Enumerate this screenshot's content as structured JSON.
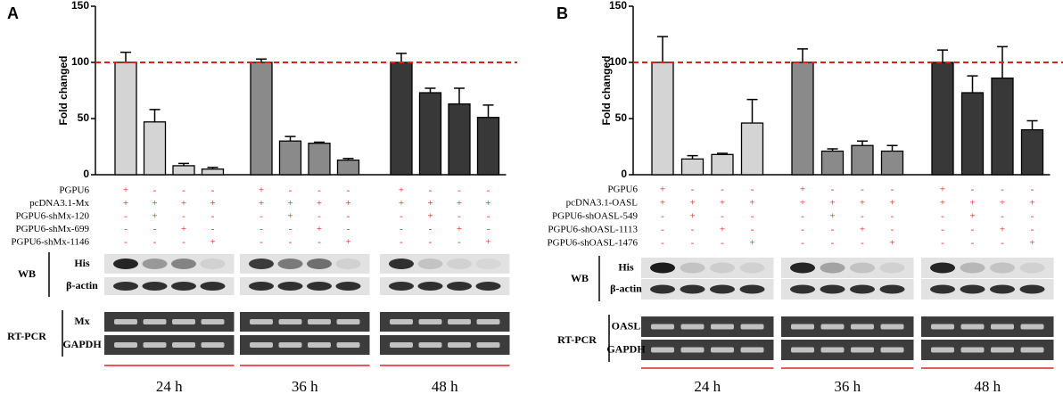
{
  "chart_data": [
    {
      "type": "bar",
      "panel": "A",
      "ylabel": "Fold changed",
      "ylim": [
        0,
        150
      ],
      "yticks": [
        0,
        50,
        100,
        150
      ],
      "reference_line": 100,
      "reference_color": "#e02020",
      "groups": [
        "24 h",
        "36 h",
        "48 h"
      ],
      "values": [
        100,
        47,
        8,
        5,
        100,
        30,
        28,
        13,
        100,
        73,
        63,
        51
      ],
      "errors": [
        9,
        11,
        2,
        1.5,
        3,
        4,
        1,
        1.5,
        8,
        4,
        14,
        11
      ],
      "colors": [
        "#d4d4d4",
        "#d4d4d4",
        "#d4d4d4",
        "#d4d4d4",
        "#8a8a8a",
        "#8a8a8a",
        "#8a8a8a",
        "#8a8a8a",
        "#383838",
        "#383838",
        "#383838",
        "#383838"
      ],
      "treatments": [
        {
          "name": "PGPU6",
          "marks": [
            "+",
            "-",
            "-",
            "-",
            "+",
            "-",
            "-",
            "-",
            "+",
            "-",
            "-",
            "-"
          ]
        },
        {
          "name": "pcDNA3.1-Mx",
          "marks": [
            "+",
            "+",
            "+",
            "+",
            "+",
            "+",
            "+",
            "+",
            "+",
            "+",
            "+",
            "+"
          ]
        },
        {
          "name": "PGPU6-shMx-120",
          "marks": [
            "-",
            "+",
            "-",
            "-",
            "-",
            "+",
            "-",
            "-",
            "-",
            "+",
            "-",
            "-"
          ]
        },
        {
          "name": "PGPU6-shMx-699",
          "marks": [
            "-",
            "-",
            "+",
            "-",
            "-",
            "-",
            "+",
            "-",
            "-",
            "-",
            "+",
            "-"
          ]
        },
        {
          "name": "PGPU6-shMx-1146",
          "marks": [
            "-",
            "-",
            "-",
            "+",
            "-",
            "-",
            "-",
            "+",
            "-",
            "-",
            "-",
            "+"
          ]
        }
      ],
      "wb_label": "WB",
      "wb_rows": [
        "His",
        "β-actin"
      ],
      "pcr_label": "RT-PCR",
      "pcr_rows": [
        "Mx",
        "GAPDH"
      ]
    },
    {
      "type": "bar",
      "panel": "B",
      "ylabel": "Fold changed",
      "ylim": [
        0,
        150
      ],
      "yticks": [
        0,
        50,
        100,
        150
      ],
      "reference_line": 100,
      "reference_color": "#e02020",
      "groups": [
        "24 h",
        "36 h",
        "48 h"
      ],
      "values": [
        100,
        14,
        18,
        46,
        100,
        21,
        26,
        21,
        100,
        73,
        86,
        40
      ],
      "errors": [
        23,
        3,
        1,
        21,
        12,
        2,
        4,
        5,
        11,
        15,
        28,
        8
      ],
      "colors": [
        "#d4d4d4",
        "#d4d4d4",
        "#d4d4d4",
        "#d4d4d4",
        "#8a8a8a",
        "#8a8a8a",
        "#8a8a8a",
        "#8a8a8a",
        "#383838",
        "#383838",
        "#383838",
        "#383838"
      ],
      "treatments": [
        {
          "name": "PGPU6",
          "marks": [
            "+",
            "-",
            "-",
            "-",
            "+",
            "-",
            "-",
            "-",
            "+",
            "-",
            "-",
            "-"
          ]
        },
        {
          "name": "pcDNA3.1-OASL",
          "marks": [
            "+",
            "+",
            "+",
            "+",
            "+",
            "+",
            "+",
            "+",
            "+",
            "+",
            "+",
            "+"
          ]
        },
        {
          "name": "PGPU6-shOASL-549",
          "marks": [
            "-",
            "+",
            "-",
            "-",
            "-",
            "+",
            "-",
            "-",
            "-",
            "+",
            "-",
            "-"
          ]
        },
        {
          "name": "PGPU6-shOASL-1113",
          "marks": [
            "-",
            "-",
            "+",
            "-",
            "-",
            "-",
            "+",
            "-",
            "-",
            "-",
            "+",
            "-"
          ]
        },
        {
          "name": "PGPU6-shOASL-1476",
          "marks": [
            "-",
            "-",
            "-",
            "+",
            "-",
            "-",
            "-",
            "+",
            "-",
            "-",
            "-",
            "+"
          ]
        }
      ],
      "wb_label": "WB",
      "wb_rows": [
        "His",
        "β-actin"
      ],
      "pcr_label": "RT-PCR",
      "pcr_rows": [
        "OASL",
        "GAPDH"
      ]
    }
  ]
}
